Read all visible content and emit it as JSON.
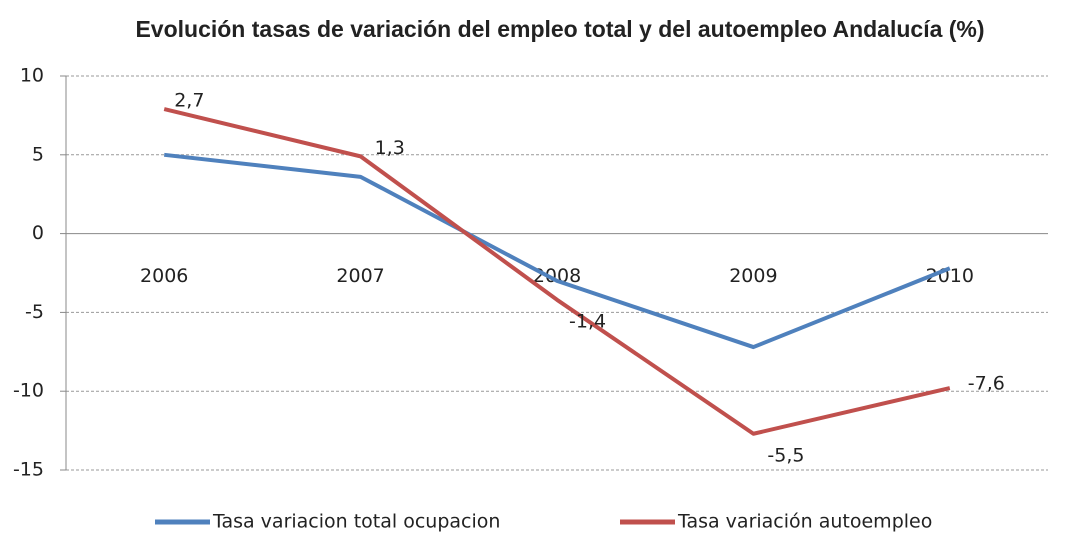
{
  "chart_data": {
    "type": "line",
    "title": "Evolución tasas de variación del empleo total y del autoempleo Andalucía (%)",
    "categories": [
      "2006",
      "2007",
      "2008",
      "2009",
      "2010"
    ],
    "series": [
      {
        "name": "Tasa variacion total ocupacion",
        "color": "#4f81bd",
        "values": [
          5.0,
          3.6,
          -3.0,
          -7.2,
          -2.2
        ]
      },
      {
        "name": "Tasa variación autoempleo",
        "color": "#c0504d",
        "values": [
          7.9,
          4.9,
          -4.2,
          -12.7,
          -9.8
        ]
      }
    ],
    "annotations": [
      "2,7",
      "1,3",
      "-1,4",
      "-5,5",
      "-7,6"
    ],
    "ylim": [
      -15,
      10
    ],
    "yticks": [
      -15,
      -10,
      -5,
      0,
      5,
      10
    ],
    "grid": true,
    "legend": "bottom"
  }
}
